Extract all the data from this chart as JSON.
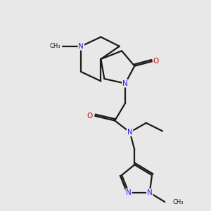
{
  "bg_color": "#e8e8e8",
  "bond_color": "#1a1a1a",
  "N_color": "#2020ff",
  "O_color": "#cc0000",
  "C_color": "#1a1a1a",
  "line_width": 1.6,
  "figsize": [
    3.0,
    3.0
  ],
  "dpi": 100,
  "xlim": [
    0.5,
    9.5
  ],
  "ylim": [
    0.5,
    9.5
  ]
}
